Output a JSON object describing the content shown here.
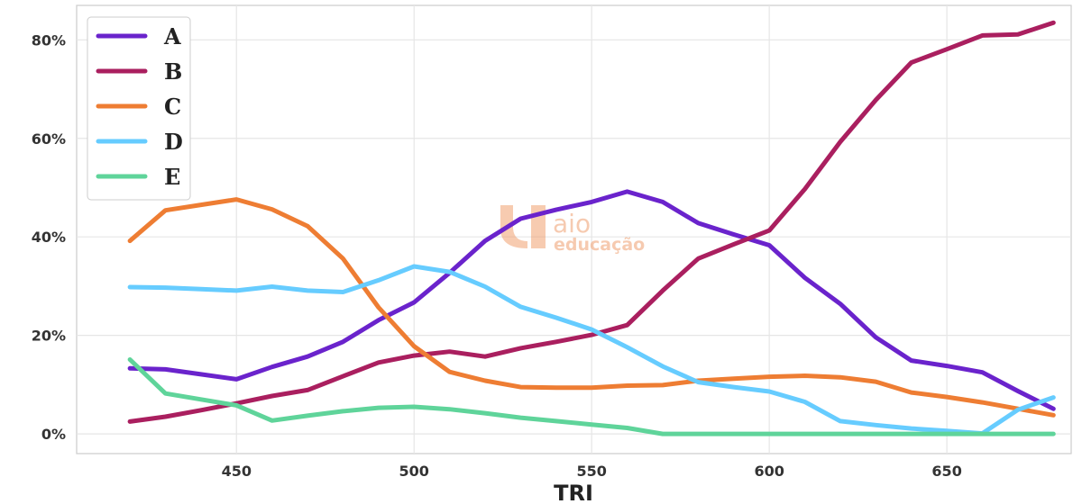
{
  "chart_data": {
    "type": "line",
    "xlabel": "TRI",
    "ylabel": "",
    "xlim": [
      405,
      685
    ],
    "ylim": [
      -0.04,
      0.87
    ],
    "x_ticks": [
      450,
      500,
      550,
      600,
      650
    ],
    "x_tick_labels": [
      "450",
      "500",
      "550",
      "600",
      "650"
    ],
    "y_ticks": [
      0,
      0.2,
      0.4,
      0.6,
      0.8
    ],
    "y_tick_labels": [
      "0%",
      "20%",
      "40%",
      "60%",
      "80%"
    ],
    "grid": true,
    "legend_position": "top-left",
    "x": [
      420,
      430,
      440,
      450,
      460,
      470,
      480,
      490,
      500,
      510,
      520,
      530,
      540,
      550,
      560,
      570,
      580,
      590,
      600,
      610,
      620,
      630,
      640,
      650,
      660,
      670,
      680
    ],
    "series": [
      {
        "name": "A",
        "color": "#6a23cc",
        "values": [
          0.133,
          0.131,
          0.121,
          0.111,
          0.136,
          0.157,
          0.187,
          0.231,
          0.267,
          0.327,
          0.392,
          0.437,
          0.455,
          0.471,
          0.492,
          0.471,
          0.428,
          0.405,
          0.383,
          0.317,
          0.264,
          0.196,
          0.149,
          0.138,
          0.125,
          0.087,
          0.051
        ]
      },
      {
        "name": "B",
        "color": "#aa1f5f",
        "values": [
          0.025,
          0.035,
          0.048,
          0.062,
          0.077,
          0.089,
          0.117,
          0.145,
          0.159,
          0.167,
          0.157,
          0.174,
          0.187,
          0.201,
          0.221,
          0.291,
          0.356,
          0.385,
          0.413,
          0.497,
          0.593,
          0.678,
          0.754,
          0.781,
          0.809,
          0.811,
          0.835
        ]
      },
      {
        "name": "C",
        "color": "#ee7d33",
        "values": [
          0.392,
          0.454,
          0.465,
          0.476,
          0.456,
          0.422,
          0.356,
          0.257,
          0.178,
          0.126,
          0.108,
          0.095,
          0.094,
          0.094,
          0.098,
          0.099,
          0.108,
          0.112,
          0.116,
          0.118,
          0.115,
          0.106,
          0.084,
          0.075,
          0.064,
          0.051,
          0.038
        ]
      },
      {
        "name": "D",
        "color": "#66ccff",
        "values": [
          0.298,
          0.297,
          0.294,
          0.291,
          0.299,
          0.291,
          0.288,
          0.312,
          0.34,
          0.329,
          0.299,
          0.258,
          0.236,
          0.212,
          0.176,
          0.137,
          0.105,
          0.095,
          0.086,
          0.065,
          0.026,
          0.018,
          0.011,
          0.006,
          0.001,
          0.049,
          0.074
        ]
      },
      {
        "name": "E",
        "color": "#5fd49a",
        "values": [
          0.151,
          0.082,
          0.07,
          0.058,
          0.027,
          0.037,
          0.046,
          0.053,
          0.055,
          0.05,
          0.042,
          0.033,
          0.026,
          0.019,
          0.012,
          0.0,
          0.0,
          0.0,
          0.0,
          0.0,
          0.0,
          0.0,
          0.0,
          0.0,
          0.0,
          0.0,
          0.0
        ]
      }
    ]
  },
  "watermark": {
    "line1": "aio",
    "line2": "educação",
    "color": "#f0a070"
  },
  "style": {
    "grid_color": "#e6e6e6",
    "frame_color": "#cccccc"
  }
}
